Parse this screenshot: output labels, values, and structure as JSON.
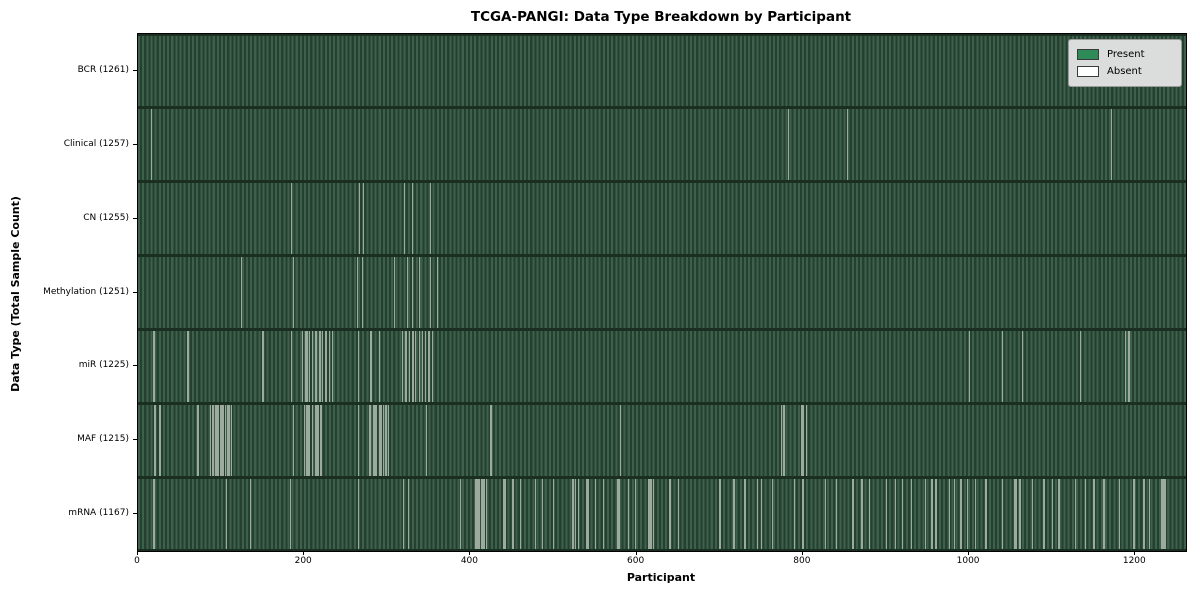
{
  "chart_data": {
    "type": "heatmap",
    "title": "TCGA-PANGI: Data Type Breakdown by Participant",
    "xlabel": "Participant",
    "ylabel": "Data Type (Total Sample Count)",
    "n_participants": 1261,
    "xlim": [
      0,
      1261
    ],
    "x_ticks": [
      0,
      200,
      400,
      600,
      800,
      1000,
      1200
    ],
    "grid": false,
    "legend_position": "upper right",
    "legend": [
      {
        "label": "Present",
        "color": "#2e8b57"
      },
      {
        "label": "Absent",
        "color": "#ffffff"
      }
    ],
    "colors": {
      "present_stripe_light": "#3e604c",
      "present_stripe_dark": "#24412f",
      "row_divider": "#1a2e21",
      "absent_line": "#9dab9e",
      "spine": "#000000",
      "legend_bg": "#dadddb"
    },
    "rows": [
      {
        "data_type": "BCR",
        "label": "BCR (1261)",
        "total": 1261,
        "absent_indices": []
      },
      {
        "data_type": "Clinical",
        "label": "Clinical (1257)",
        "total": 1257,
        "absent_indices": [
          16,
          782,
          853,
          1171
        ]
      },
      {
        "data_type": "CN",
        "label": "CN (1255)",
        "total": 1255,
        "absent_indices": [
          184,
          266,
          271,
          320,
          330,
          352
        ]
      },
      {
        "data_type": "Methylation",
        "label": "Methylation (1251)",
        "total": 1251,
        "absent_indices": [
          124,
          187,
          264,
          270,
          308,
          324,
          330,
          338,
          352,
          360
        ]
      },
      {
        "data_type": "miR",
        "label": "miR (1225)",
        "total": 1225,
        "absent_indices": [
          19,
          60,
          150,
          184,
          198,
          202,
          203,
          206,
          210,
          214,
          218,
          219,
          222,
          226,
          230,
          234,
          265,
          280,
          290,
          318,
          322,
          326,
          330,
          331,
          334,
          338,
          342,
          346,
          350,
          354,
          1000,
          1040,
          1064,
          1134,
          1188,
          1192
        ]
      },
      {
        "data_type": "MAF",
        "label": "MAF (1215)",
        "total": 1215,
        "absent_indices": [
          20,
          26,
          72,
          87,
          90,
          93,
          94,
          96,
          99,
          100,
          102,
          105,
          108,
          110,
          112,
          187,
          200,
          203,
          205,
          206,
          210,
          214,
          215,
          217,
          220,
          265,
          279,
          283,
          285,
          287,
          291,
          293,
          295,
          298,
          299,
          301,
          347,
          424,
          425,
          580,
          774,
          776,
          778,
          798,
          800,
          804
        ]
      },
      {
        "data_type": "mRNA",
        "label": "mRNA (1167)",
        "total": 1167,
        "absent_indices": [
          19,
          106,
          135,
          183,
          265,
          319,
          325,
          388,
          406,
          407,
          408,
          410,
          411,
          413,
          414,
          416,
          417,
          419,
          440,
          442,
          451,
          460,
          478,
          486,
          500,
          523,
          524,
          526,
          530,
          539,
          540,
          541,
          550,
          560,
          577,
          578,
          579,
          590,
          598,
          614,
          615,
          617,
          620,
          640,
          650,
          700,
          717,
          730,
          745,
          750,
          763,
          790,
          800,
          827,
          840,
          860,
          871,
          880,
          900,
          911,
          920,
          930,
          947,
          955,
          960,
          976,
          982,
          990,
          998,
          1007,
          1020,
          1040,
          1054,
          1055,
          1056,
          1057,
          1061,
          1076,
          1090,
          1100,
          1108,
          1128,
          1140,
          1150,
          1162,
          1181,
          1198,
          1210,
          1217,
          1232,
          1233,
          1234,
          1235,
          1236
        ]
      }
    ]
  }
}
